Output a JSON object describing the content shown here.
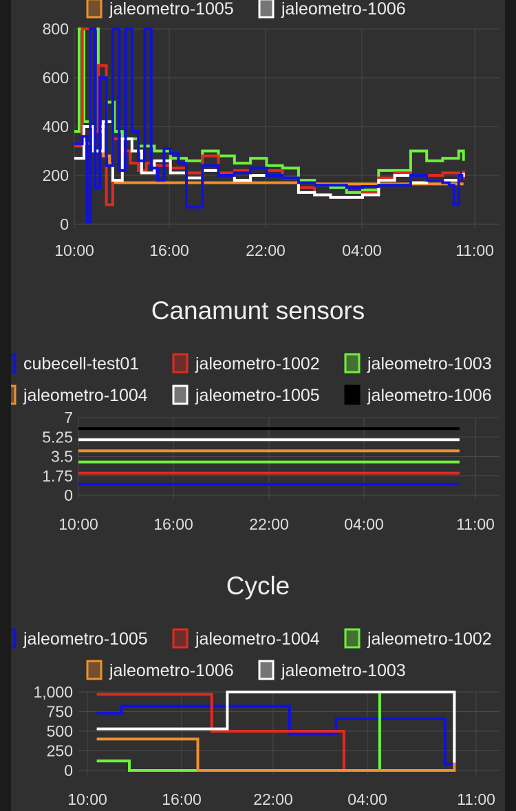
{
  "charts": [
    {
      "id": "noise",
      "title": "",
      "legend_rows": [
        [
          {
            "label": "jaleometro-1005",
            "color": "#f0902c"
          },
          {
            "label": "jaleometro-1006",
            "color": "#ffffff"
          }
        ]
      ],
      "xticks": [
        "10:00",
        "16:00",
        "22:00",
        "04:00",
        "11:00"
      ],
      "yticks": [
        "800",
        "600",
        "400",
        "200",
        "0"
      ]
    },
    {
      "id": "sensors",
      "title": "Canamunt sensors",
      "legend_rows": [
        [
          {
            "label": "cubecell-test01",
            "color": "#1010e0"
          },
          {
            "label": "jaleometro-1002",
            "color": "#e02b20"
          },
          {
            "label": "jaleometro-1003",
            "color": "#6ef03c"
          }
        ],
        [
          {
            "label": "jaleometro-1004",
            "color": "#f0902c"
          },
          {
            "label": "jaleometro-1005",
            "color": "#ffffff"
          },
          {
            "label": "jaleometro-1006",
            "color": "#000000"
          }
        ]
      ],
      "xticks": [
        "10:00",
        "16:00",
        "22:00",
        "04:00",
        "11:00"
      ],
      "yticks": [
        "7",
        "5.25",
        "3.5",
        "1.75",
        "0"
      ]
    },
    {
      "id": "cycle",
      "title": "Cycle",
      "legend_rows": [
        [
          {
            "label": "jaleometro-1005",
            "color": "#1010e0"
          },
          {
            "label": "jaleometro-1004",
            "color": "#e02b20"
          },
          {
            "label": "jaleometro-1002",
            "color": "#6ef03c"
          }
        ],
        [
          {
            "label": "jaleometro-1006",
            "color": "#f0902c"
          },
          {
            "label": "jaleometro-1003",
            "color": "#ffffff"
          }
        ]
      ],
      "xticks": [
        "10:00",
        "16:00",
        "22:00",
        "04:00",
        "11:00"
      ],
      "yticks": [
        "1,000",
        "750",
        "500",
        "250",
        "0"
      ]
    }
  ],
  "chart_data": [
    {
      "type": "line",
      "title": "",
      "x_unit": "hours since 10:00",
      "xlim": [
        0,
        25
      ],
      "ylim": [
        0,
        800
      ],
      "grid": true,
      "series": [
        {
          "name": "cubecell-test01",
          "color": "#1010e0",
          "x": [
            0,
            0.5,
            0.8,
            1.0,
            1.3,
            1.6,
            2.0,
            2.4,
            2.8,
            3.2,
            3.6,
            4.0,
            4.4,
            4.8,
            5.2,
            5.6,
            6.0,
            6.5,
            7.0,
            8.0,
            9.0,
            10.0,
            11.0,
            12.0,
            13.0,
            14.0,
            15.0,
            16.0,
            17.0,
            18.0,
            19.0,
            20.0,
            21.0,
            22.0,
            23.0,
            23.4,
            23.7,
            24.0,
            24.2
          ],
          "y": [
            330,
            360,
            10,
            800,
            150,
            600,
            240,
            800,
            220,
            800,
            380,
            260,
            800,
            230,
            180,
            310,
            290,
            250,
            70,
            240,
            200,
            210,
            230,
            200,
            190,
            170,
            160,
            160,
            150,
            155,
            160,
            160,
            200,
            180,
            170,
            160,
            80,
            200,
            180
          ]
        },
        {
          "name": "jaleometro-1002",
          "color": "#e02b20",
          "x": [
            0,
            0.5,
            1.0,
            1.5,
            2.0,
            2.4,
            3.0,
            3.5,
            4.0,
            4.5,
            5.0,
            6.0,
            7.0,
            8.0,
            9.0,
            10.0,
            11.0,
            12.0,
            13.0,
            14.0,
            15.0,
            16.0,
            17.0,
            18.0,
            19.0,
            20.0,
            21.0,
            22.0,
            23.0,
            24.0,
            24.3
          ],
          "y": [
            320,
            800,
            380,
            650,
            80,
            350,
            300,
            250,
            220,
            250,
            240,
            230,
            210,
            280,
            210,
            220,
            200,
            220,
            190,
            150,
            120,
            110,
            110,
            130,
            190,
            210,
            170,
            200,
            210,
            190,
            220
          ]
        },
        {
          "name": "jaleometro-1003",
          "color": "#6ef03c",
          "x": [
            0,
            0.3,
            0.6,
            1.0,
            1.5,
            2.0,
            2.5,
            3.0,
            4.0,
            5.0,
            6.0,
            7.0,
            8.0,
            9.0,
            10.0,
            11.0,
            12.0,
            13.0,
            14.0,
            15.0,
            16.0,
            17.0,
            18.0,
            19.0,
            20.0,
            21.0,
            22.0,
            23.0,
            24.0,
            24.3
          ],
          "y": [
            380,
            800,
            420,
            800,
            400,
            500,
            380,
            350,
            320,
            300,
            270,
            260,
            300,
            280,
            250,
            270,
            240,
            230,
            180,
            160,
            150,
            130,
            140,
            220,
            220,
            300,
            260,
            270,
            300,
            260
          ]
        },
        {
          "name": "jaleometro-1004",
          "color": "#f0902c",
          "x": [
            0,
            1.0,
            1.8,
            2.2,
            2.4,
            5.0,
            10.0,
            15.0,
            20.0,
            24.3
          ],
          "y": [
            330,
            380,
            280,
            250,
            170,
            170,
            170,
            165,
            165,
            165
          ]
        },
        {
          "name": "jaleometro-1005",
          "color": "#ffffff",
          "x": [
            0,
            0.6,
            1.2,
            1.8,
            2.4,
            3.0,
            3.6,
            4.2,
            5.0,
            6.0,
            7.0,
            8.0,
            9.0,
            10.0,
            11.0,
            12.0,
            13.0,
            14.0,
            15.0,
            16.0,
            17.0,
            18.0,
            19.0,
            20.0,
            21.0,
            22.0,
            23.0,
            24.0,
            24.3
          ],
          "y": [
            270,
            400,
            300,
            420,
            180,
            350,
            300,
            210,
            260,
            210,
            190,
            220,
            200,
            180,
            200,
            200,
            190,
            130,
            120,
            110,
            110,
            120,
            180,
            200,
            170,
            180,
            180,
            200,
            210
          ]
        },
        {
          "name": "jaleometro-1006",
          "color": "#000000",
          "x": [
            0,
            24.3
          ],
          "y": [
            0,
            0
          ]
        }
      ]
    },
    {
      "type": "line",
      "title": "Canamunt sensors",
      "x_unit": "hours since 10:00",
      "xlim": [
        0,
        25
      ],
      "ylim": [
        0,
        7
      ],
      "grid": true,
      "series": [
        {
          "name": "cubecell-test01",
          "color": "#1010e0",
          "x": [
            0,
            24
          ],
          "y": [
            1,
            1
          ]
        },
        {
          "name": "jaleometro-1002",
          "color": "#e02b20",
          "x": [
            0,
            24
          ],
          "y": [
            2,
            2
          ]
        },
        {
          "name": "jaleometro-1003",
          "color": "#6ef03c",
          "x": [
            0,
            24
          ],
          "y": [
            3,
            3
          ]
        },
        {
          "name": "jaleometro-1004",
          "color": "#f0902c",
          "x": [
            0,
            24
          ],
          "y": [
            4,
            4
          ]
        },
        {
          "name": "jaleometro-1005",
          "color": "#ffffff",
          "x": [
            0,
            24
          ],
          "y": [
            5,
            5
          ]
        },
        {
          "name": "jaleometro-1006",
          "color": "#000000",
          "x": [
            0,
            24
          ],
          "y": [
            6,
            6
          ]
        }
      ]
    },
    {
      "type": "line",
      "title": "Cycle",
      "x_unit": "hours since 10:00",
      "xlim": [
        0,
        25
      ],
      "ylim": [
        0,
        1000
      ],
      "grid": true,
      "series": [
        {
          "name": "jaleometro-1005",
          "color": "#1010e0",
          "x": [
            0.6,
            2.2,
            13.0,
            13.0,
            16.0,
            23.0,
            23.0,
            23.6
          ],
          "y": [
            730,
            820,
            820,
            470,
            660,
            660,
            80,
            100
          ]
        },
        {
          "name": "jaleometro-1004",
          "color": "#e02b20",
          "x": [
            0.6,
            8.0,
            16.5,
            23.6
          ],
          "y": [
            970,
            500,
            0,
            450
          ]
        },
        {
          "name": "jaleometro-1002",
          "color": "#6ef03c",
          "x": [
            0.6,
            2.7,
            18.8,
            23.6
          ],
          "y": [
            120,
            0,
            1000,
            720
          ]
        },
        {
          "name": "jaleometro-1006",
          "color": "#f0902c",
          "x": [
            0.6,
            7.1,
            23.6
          ],
          "y": [
            400,
            0,
            1000
          ]
        },
        {
          "name": "jaleometro-1003",
          "color": "#ffffff",
          "x": [
            0.6,
            9.0,
            23.6
          ],
          "y": [
            530,
            1000,
            100
          ]
        }
      ]
    }
  ]
}
